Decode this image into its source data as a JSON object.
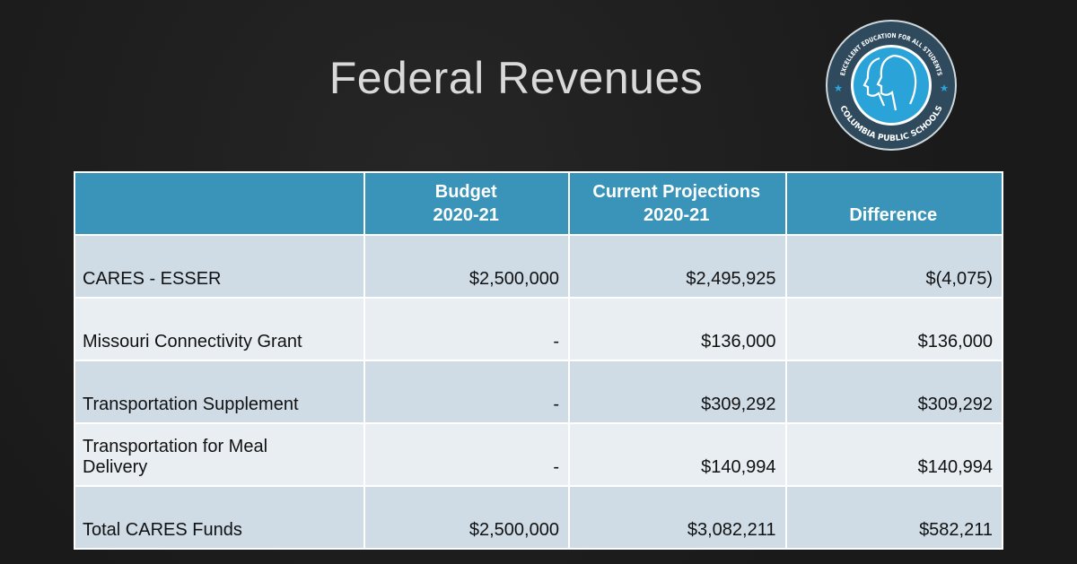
{
  "slide": {
    "title": "Federal Revenues"
  },
  "logo": {
    "top_text": "EXCELLENT EDUCATION FOR ALL STUDENTS",
    "bottom_text": "COLUMBIA PUBLIC SCHOOLS",
    "colors": {
      "ring": "#2f4a5c",
      "center": "#2aa3d9"
    }
  },
  "table": {
    "headers": [
      {
        "line1": "",
        "line2": ""
      },
      {
        "line1": "Budget",
        "line2": "2020-21"
      },
      {
        "line1": "Current Projections",
        "line2": "2020-21"
      },
      {
        "line1": "",
        "line2": "Difference"
      }
    ],
    "rows": [
      {
        "label": "CARES - ESSER",
        "budget": "$2,500,000",
        "projection": "$2,495,925",
        "difference": "$(4,075)"
      },
      {
        "label": "Missouri Connectivity Grant",
        "budget": "-",
        "projection": "$136,000",
        "difference": "$136,000"
      },
      {
        "label": "Transportation Supplement",
        "budget": "-",
        "projection": "$309,292",
        "difference": "$309,292"
      },
      {
        "label": "Transportation for Meal Delivery",
        "budget": "-",
        "projection": "$140,994",
        "difference": "$140,994"
      },
      {
        "label": "Total CARES Funds",
        "budget": "$2,500,000",
        "projection": "$3,082,211",
        "difference": "$582,211"
      }
    ]
  }
}
